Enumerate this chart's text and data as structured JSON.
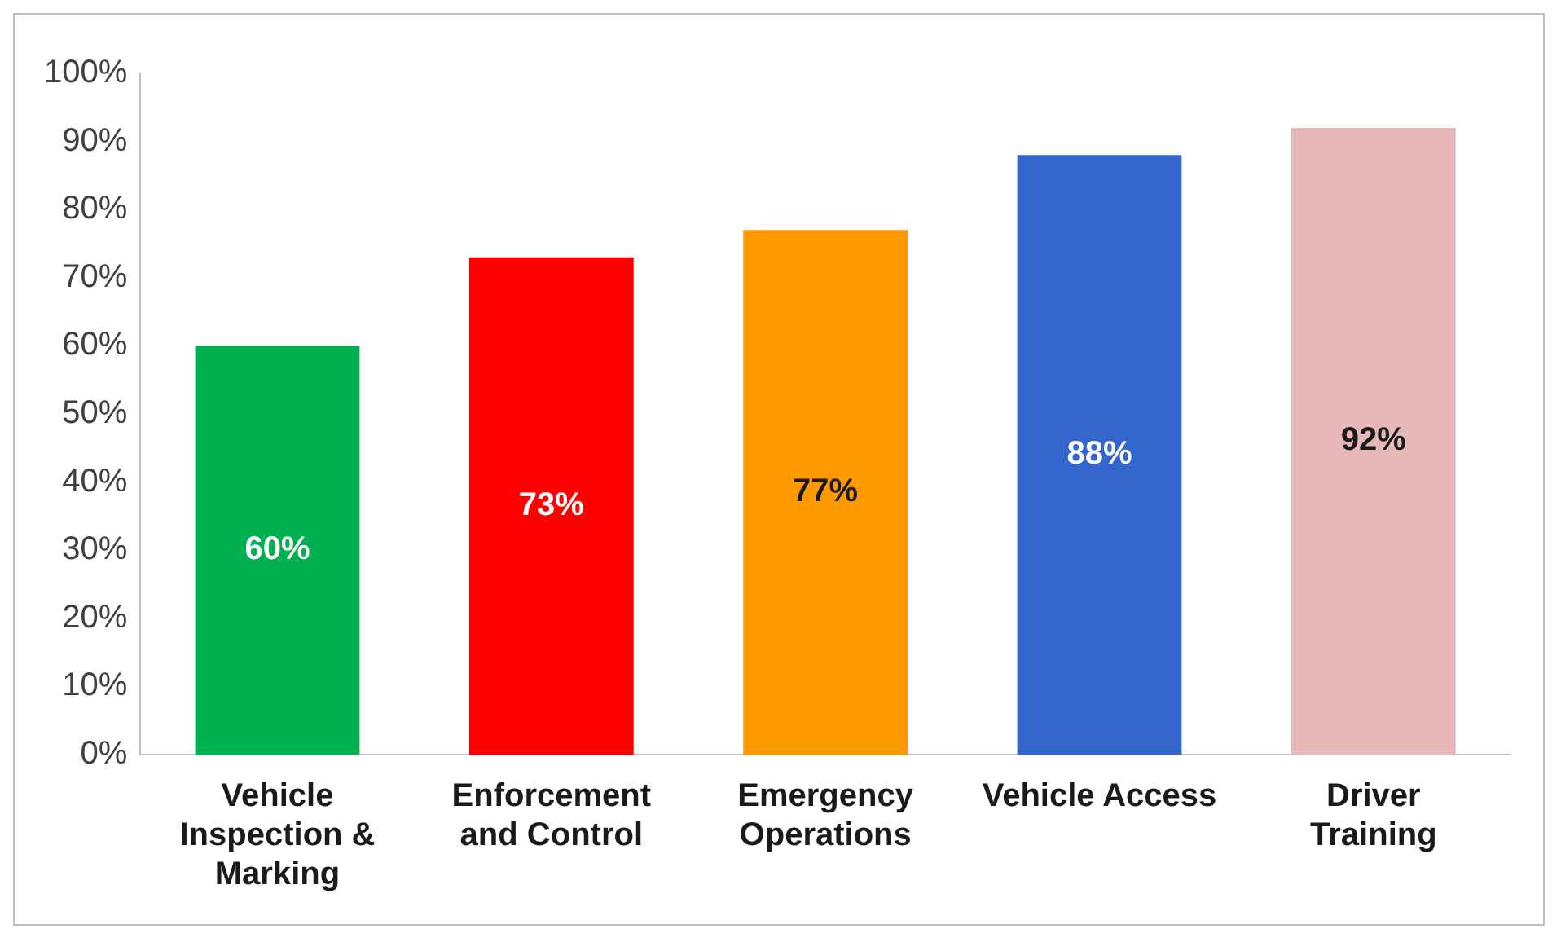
{
  "chart_data": {
    "type": "bar",
    "categories": [
      "Vehicle Inspection & Marking",
      "Enforcement and Control",
      "Emergency Operations",
      "Vehicle Access",
      "Driver Training"
    ],
    "values": [
      60,
      73,
      77,
      88,
      92
    ],
    "colors": [
      "#00b050",
      "#ff0000",
      "#ff9900",
      "#3366cc",
      "#e6b8b7"
    ],
    "value_labels": [
      "60%",
      "73%",
      "77%",
      "88%",
      "92%"
    ],
    "ylim": [
      0,
      100
    ],
    "yticks": [
      {
        "value": 0,
        "label": "0%"
      },
      {
        "value": 10,
        "label": "10%"
      },
      {
        "value": 20,
        "label": "20%"
      },
      {
        "value": 30,
        "label": "30%"
      },
      {
        "value": 40,
        "label": "40%"
      },
      {
        "value": 50,
        "label": "50%"
      },
      {
        "value": 60,
        "label": "60%"
      },
      {
        "value": 70,
        "label": "70%"
      },
      {
        "value": 80,
        "label": "80%"
      },
      {
        "value": 90,
        "label": "90%"
      },
      {
        "value": 100,
        "label": "100%"
      }
    ],
    "grid": false,
    "legend": false
  }
}
